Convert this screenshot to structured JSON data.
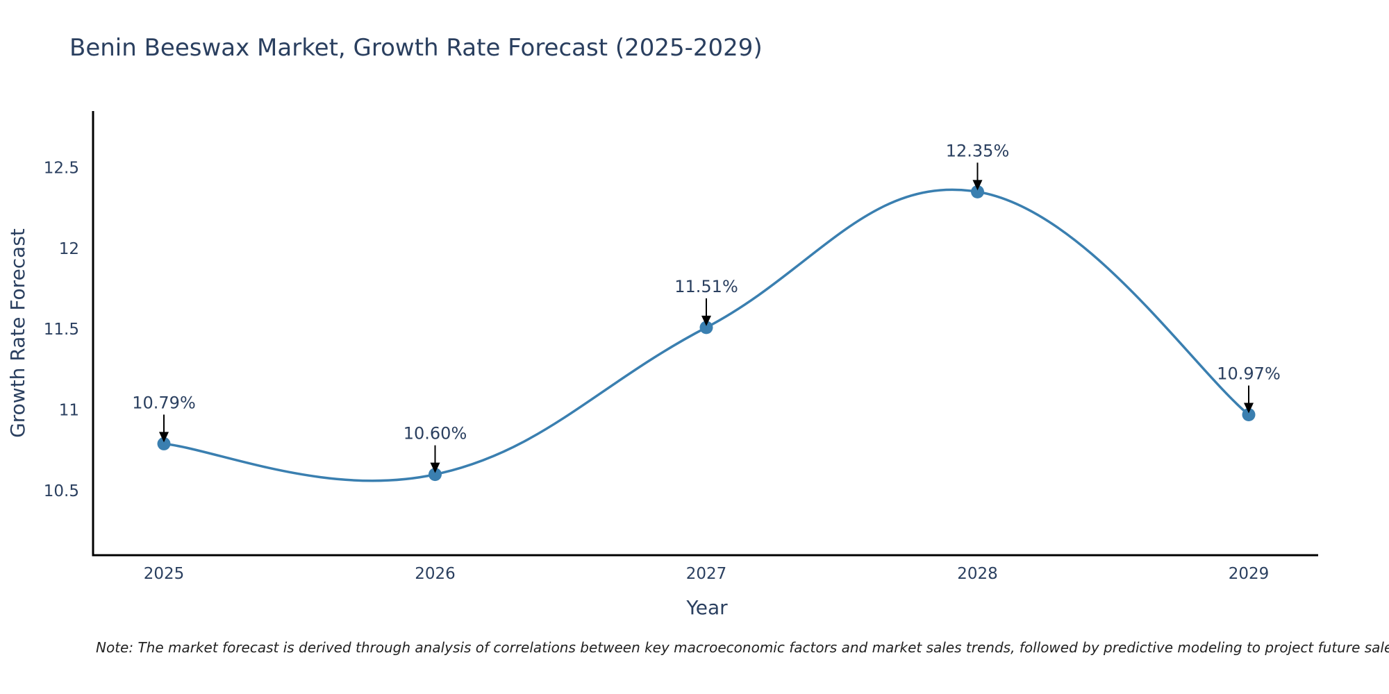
{
  "chart_data": {
    "type": "line",
    "title": "Benin Beeswax Market, Growth Rate Forecast (2025-2029)",
    "xlabel": "Year",
    "ylabel": "Growth Rate Forecast",
    "categories": [
      "2025",
      "2026",
      "2027",
      "2028",
      "2029"
    ],
    "series": [
      {
        "name": "Growth Rate Forecast",
        "values": [
          10.79,
          10.6,
          11.51,
          12.35,
          10.97
        ],
        "labels": [
          "10.79%",
          "10.60%",
          "11.51%",
          "12.35%",
          "10.97%"
        ]
      }
    ],
    "ylim": [
      10.1,
      12.85
    ],
    "yticks": [
      10.5,
      11,
      11.5,
      12,
      12.5
    ],
    "ytick_labels": [
      "10.5",
      "11",
      "11.5",
      "12",
      "12.5"
    ],
    "grid": false,
    "line_shape": "spline",
    "line_color": "#3a7fb0",
    "marker_color": "#3a7fb0",
    "note": "Note: The market forecast is derived through analysis of correlations between key macroeconomic factors and market sales trends, followed by predictive modeling to project future sales."
  }
}
